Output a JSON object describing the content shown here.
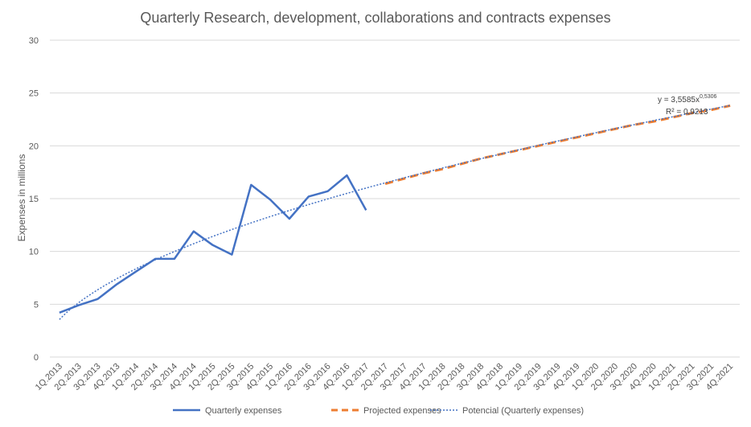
{
  "chart_data": {
    "type": "line",
    "title": "Quarterly Research, development, collaborations and contracts expenses",
    "xlabel": "",
    "ylabel": "Expenses in millions",
    "ylim": [
      0,
      30
    ],
    "yticks": [
      "0",
      "5",
      "10",
      "15",
      "20",
      "25",
      "30"
    ],
    "grid": true,
    "legend_position": "bottom",
    "categories": [
      "1Q.2013",
      "2Q.2013",
      "3Q.2013",
      "4Q.2013",
      "1Q.2014",
      "2Q.2014",
      "3Q.2014",
      "4Q.2014",
      "1Q.2015",
      "2Q.2015",
      "3Q.2015",
      "4Q.2015",
      "1Q.2016",
      "2Q.2016",
      "3Q.2016",
      "4Q.2016",
      "1Q.2017",
      "2Q.2017",
      "3Q.2017",
      "4Q.2017",
      "1Q.2018",
      "2Q.2018",
      "3Q.2018",
      "4Q.2018",
      "1Q.2019",
      "2Q.2019",
      "3Q.2019",
      "4Q.2019",
      "1Q.2020",
      "2Q.2020",
      "3Q.2020",
      "4Q.2020",
      "1Q.2021",
      "2Q.2021",
      "3Q.2021",
      "4Q.2021"
    ],
    "series": [
      {
        "name": "Quarterly expenses",
        "color": "#4472C4",
        "style": "solid",
        "values": [
          4.2,
          4.9,
          5.5,
          6.9,
          8.1,
          9.3,
          9.3,
          11.9,
          10.6,
          9.7,
          16.3,
          14.9,
          13.1,
          15.2,
          15.7,
          17.2,
          13.9,
          null,
          null,
          null,
          null,
          null,
          null,
          null,
          null,
          null,
          null,
          null,
          null,
          null,
          null,
          null,
          null,
          null,
          null,
          null
        ]
      },
      {
        "name": "Projected expenses",
        "color": "#ED7D31",
        "style": "dashed",
        "values": [
          null,
          null,
          null,
          null,
          null,
          null,
          null,
          null,
          null,
          null,
          null,
          null,
          null,
          null,
          null,
          null,
          null,
          16.4,
          16.9,
          17.4,
          17.8,
          18.3,
          18.8,
          19.2,
          19.6,
          20.0,
          20.4,
          20.8,
          21.2,
          21.6,
          22.0,
          22.3,
          22.7,
          23.1,
          23.4,
          23.8
        ]
      },
      {
        "name": "Potencial (Quarterly expenses)",
        "color": "#4472C4",
        "style": "dotted",
        "trend": {
          "a": 3.5585,
          "b": 0.5306
        }
      }
    ],
    "annotations": {
      "equation_prefix": "y = 3,5585x",
      "equation_exponent": "0,5306",
      "r_squared": "R² = 0,9213"
    }
  }
}
